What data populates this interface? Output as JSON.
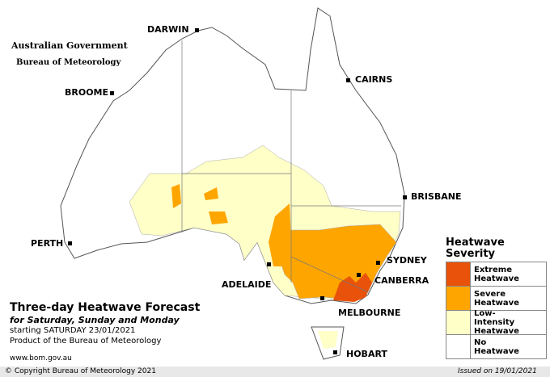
{
  "header": {
    "government": "Australian Government",
    "bureau": "Bureau of Meteorology"
  },
  "cities": [
    {
      "label": "DARWIN"
    },
    {
      "label": "CAIRNS"
    },
    {
      "label": "BROOME"
    },
    {
      "label": "BRISBANE"
    },
    {
      "label": "PERTH"
    },
    {
      "label": "SYDNEY"
    },
    {
      "label": "ADELAIDE"
    },
    {
      "label": "CANBERRA"
    },
    {
      "label": "MELBOURNE"
    },
    {
      "label": "HOBART"
    }
  ],
  "title": "Three-day Heatwave Forecast",
  "subtitle": "for Saturday, Sunday and Monday",
  "starting": "starting SATURDAY 23/01/2021",
  "product": "Product of the Bureau of Meteorology",
  "url": "www.bom.gov.au",
  "legend": {
    "title": "Heatwave Severity",
    "items": [
      {
        "label": "Extreme Heatwave",
        "color": "#e8520a"
      },
      {
        "label": "Severe Heatwave",
        "color": "#ffa500"
      },
      {
        "label": "Low-Intensity Heatwave",
        "color": "#ffffc8"
      },
      {
        "label": "No Heatwave",
        "color": "#ffffff"
      }
    ]
  },
  "footer": {
    "copyright": "© Copyright Bureau of Meteorology 2021",
    "issued": "Issued on 19/01/2021"
  }
}
